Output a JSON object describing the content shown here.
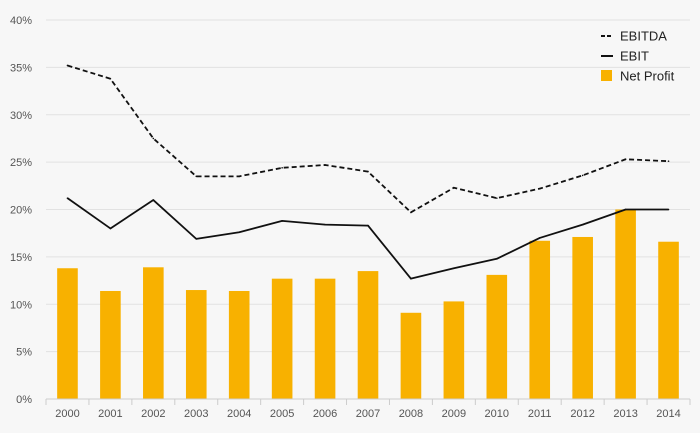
{
  "chart_data": {
    "type": "bar",
    "categories": [
      "2000",
      "2001",
      "2002",
      "2003",
      "2004",
      "2005",
      "2006",
      "2007",
      "2008",
      "2009",
      "2010",
      "2011",
      "2012",
      "2013",
      "2014"
    ],
    "series": [
      {
        "name": "EBITDA",
        "type": "line",
        "style": "dashed",
        "color": "#111111",
        "values": [
          35.2,
          33.8,
          27.5,
          23.5,
          23.5,
          24.4,
          24.7,
          24.0,
          19.7,
          22.3,
          21.2,
          22.2,
          23.6,
          25.3,
          25.1
        ]
      },
      {
        "name": "EBIT",
        "type": "line",
        "style": "solid",
        "color": "#111111",
        "values": [
          21.2,
          18.0,
          21.0,
          16.9,
          17.6,
          18.8,
          18.4,
          18.3,
          12.7,
          13.8,
          14.8,
          17.0,
          18.4,
          20.0,
          20.0
        ]
      },
      {
        "name": "Net Profit",
        "type": "bar",
        "color": "#f8b100",
        "values": [
          13.8,
          11.4,
          13.9,
          11.5,
          11.4,
          12.7,
          12.7,
          13.5,
          9.1,
          10.3,
          13.1,
          16.7,
          17.1,
          20.0,
          16.6
        ]
      }
    ],
    "ylim": [
      0,
      40
    ],
    "yticks": [
      "0%",
      "5%",
      "10%",
      "15%",
      "20%",
      "25%",
      "30%",
      "35%",
      "40%"
    ],
    "ytick_values": [
      0,
      5,
      10,
      15,
      20,
      25,
      30,
      35,
      40
    ],
    "grid": true,
    "legend": {
      "position": "top-right",
      "items": [
        {
          "label": "EBITDA",
          "symbol": "dashed-line"
        },
        {
          "label": "EBIT",
          "symbol": "solid-line"
        },
        {
          "label": "Net Profit",
          "symbol": "bar-swatch"
        }
      ]
    },
    "title": "",
    "xlabel": "",
    "ylabel": ""
  }
}
